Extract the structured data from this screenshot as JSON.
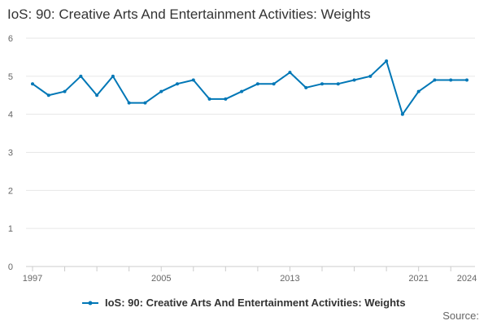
{
  "title": "IoS: 90: Creative Arts And Entertainment Activities: Weights",
  "source_label": "Source:",
  "chart_data": {
    "type": "line",
    "title": "IoS: 90: Creative Arts And Entertainment Activities: Weights",
    "xlabel": "",
    "ylabel": "",
    "x": [
      1997,
      1998,
      1999,
      2000,
      2001,
      2002,
      2003,
      2004,
      2005,
      2006,
      2007,
      2008,
      2009,
      2010,
      2011,
      2012,
      2013,
      2014,
      2015,
      2016,
      2017,
      2018,
      2019,
      2020,
      2021,
      2022,
      2023,
      2024
    ],
    "x_tick_labels": [
      "1997",
      "2005",
      "2013",
      "2021",
      "2024"
    ],
    "x_tick_values": [
      1997,
      2005,
      2013,
      2021,
      2024
    ],
    "ylim": [
      0,
      6
    ],
    "y_ticks": [
      0,
      1,
      2,
      3,
      4,
      5,
      6
    ],
    "grid": true,
    "legend_position": "bottom",
    "series": [
      {
        "name": "IoS: 90: Creative Arts And Entertainment Activities: Weights",
        "color": "#0077b6",
        "values": [
          4.8,
          4.5,
          4.6,
          5.0,
          4.5,
          5.0,
          4.3,
          4.3,
          4.6,
          4.8,
          4.9,
          4.4,
          4.4,
          4.6,
          4.8,
          4.8,
          5.1,
          4.7,
          4.8,
          4.8,
          4.9,
          5.0,
          5.4,
          4.0,
          4.6,
          4.9,
          4.9,
          4.9
        ]
      }
    ]
  }
}
